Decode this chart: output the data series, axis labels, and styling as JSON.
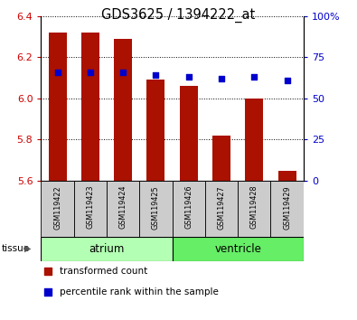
{
  "title": "GDS3625 / 1394222_at",
  "samples": [
    "GSM119422",
    "GSM119423",
    "GSM119424",
    "GSM119425",
    "GSM119426",
    "GSM119427",
    "GSM119428",
    "GSM119429"
  ],
  "bar_values": [
    6.32,
    6.32,
    6.29,
    6.09,
    6.06,
    5.82,
    6.0,
    5.65
  ],
  "bar_bottom": 5.6,
  "percentile_values": [
    66,
    66,
    66,
    64,
    63,
    62,
    63,
    61
  ],
  "groups": [
    {
      "name": "atrium",
      "start": 0,
      "end": 3,
      "color_light": "#ccffcc",
      "color_dark": "#66dd66"
    },
    {
      "name": "ventricle",
      "start": 4,
      "end": 7,
      "color_light": "#55ee55",
      "color_dark": "#44cc44"
    }
  ],
  "bar_color": "#aa1100",
  "dot_color": "#0000cc",
  "ylim_left": [
    5.6,
    6.4
  ],
  "ylim_right": [
    0,
    100
  ],
  "yticks_left": [
    5.6,
    5.8,
    6.0,
    6.2,
    6.4
  ],
  "yticks_right": [
    0,
    25,
    50,
    75,
    100
  ],
  "left_tick_color": "#cc0000",
  "right_tick_color": "#0000cc",
  "grid_color": "#000000",
  "sample_box_color": "#cccccc",
  "atrium_color": "#b3ffb3",
  "ventricle_color": "#66ee66",
  "legend_items": [
    {
      "label": "transformed count",
      "color": "#aa1100"
    },
    {
      "label": "percentile rank within the sample",
      "color": "#0000cc"
    }
  ]
}
